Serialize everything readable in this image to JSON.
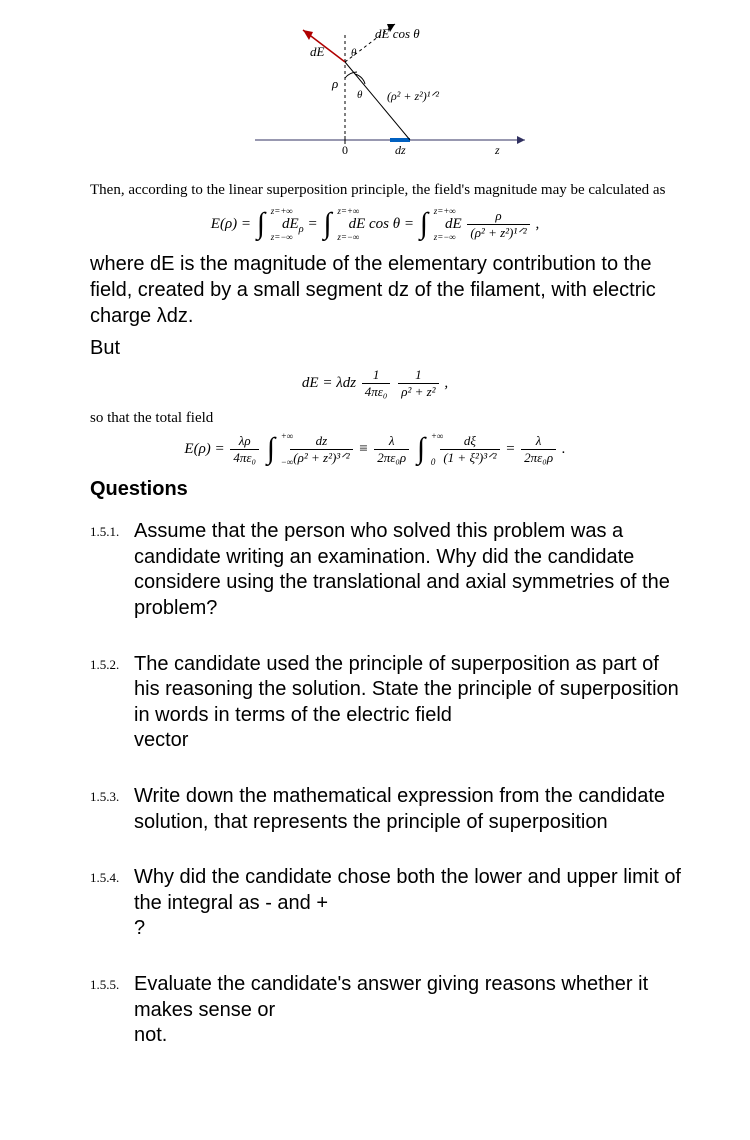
{
  "diagram": {
    "labels": {
      "dE": "dE",
      "dEcos": "dE cos θ",
      "theta1": "θ",
      "theta2": "θ",
      "rho": "ρ",
      "hyp": "(ρ² + z²)¹ᐟ²",
      "zero": "0",
      "dz": "dz",
      "z": "z"
    },
    "colors": {
      "axis": "#000000",
      "dE_line": "#b00000",
      "arc": "#0060c0",
      "tick": "#000000"
    }
  },
  "intro": "Then, according to the linear superposition principle, the field's magnitude may be calculated as",
  "eq1": {
    "Epo": "E(ρ) =",
    "int_up": "z=+∞",
    "int_lo": "z=−∞",
    "dEp": "dE",
    "dEp_sub": "ρ",
    "eq": " = ",
    "dEc": "dE cos θ = ",
    "dE_last": "dE",
    "frac_num": "ρ",
    "frac_den": "(ρ² + z²)¹ᐟ²",
    "comma": ","
  },
  "explain": "where dE is the magnitude of the elementary contribution to the field, created by a small segment dz of the filament, with electric charge λdz.",
  "but": "But",
  "eq2": {
    "pre": "dE = λdz",
    "frac1_num": "1",
    "frac1_den": "4πε₀",
    "frac2_num": "1",
    "frac2_den": "ρ² + z²",
    "comma": ","
  },
  "so_that": "so that the total field",
  "eq3": {
    "Epo": "E(ρ) =",
    "f1_num": "λρ",
    "f1_den": "4πε₀",
    "int1_up": "+∞",
    "int1_lo": "−∞",
    "fA_num": "dz",
    "fA_den": "(ρ² + z²)³ᐟ²",
    "equiv": " ≡ ",
    "f2_num": "λ",
    "f2_den": "2πε₀ρ",
    "int2_up": "+∞",
    "int2_lo": "0",
    "fB_num": "dξ",
    "fB_den": "(1 + ξ²)³ᐟ²",
    "eq": " = ",
    "f3_num": "λ",
    "f3_den": "2πε₀ρ",
    "period": "."
  },
  "questions_head": "Questions",
  "questions": [
    {
      "num": "1.5.1.",
      "text": "Assume that the person who solved this problem was a candidate writing an examination. Why did the candidate considere using the translational and axial symmetries of the\nproblem?"
    },
    {
      "num": "1.5.2.",
      "text": "The candidate used the principle of superposition as part of his reasoning the solution. State the principle of superposition in words in terms of the electric field\nvector"
    },
    {
      "num": "1.5.3.",
      "text": "Write down the mathematical expression from the candidate solution, that represents the principle of superposition"
    },
    {
      "num": "1.5.4.",
      "text": "Why did the candidate chose both the lower and upper limit of the integral as - and +\n?"
    },
    {
      "num": "1.5.5.",
      "text": "Evaluate the candidate's answer giving reasons whether it makes sense or\nnot."
    }
  ]
}
